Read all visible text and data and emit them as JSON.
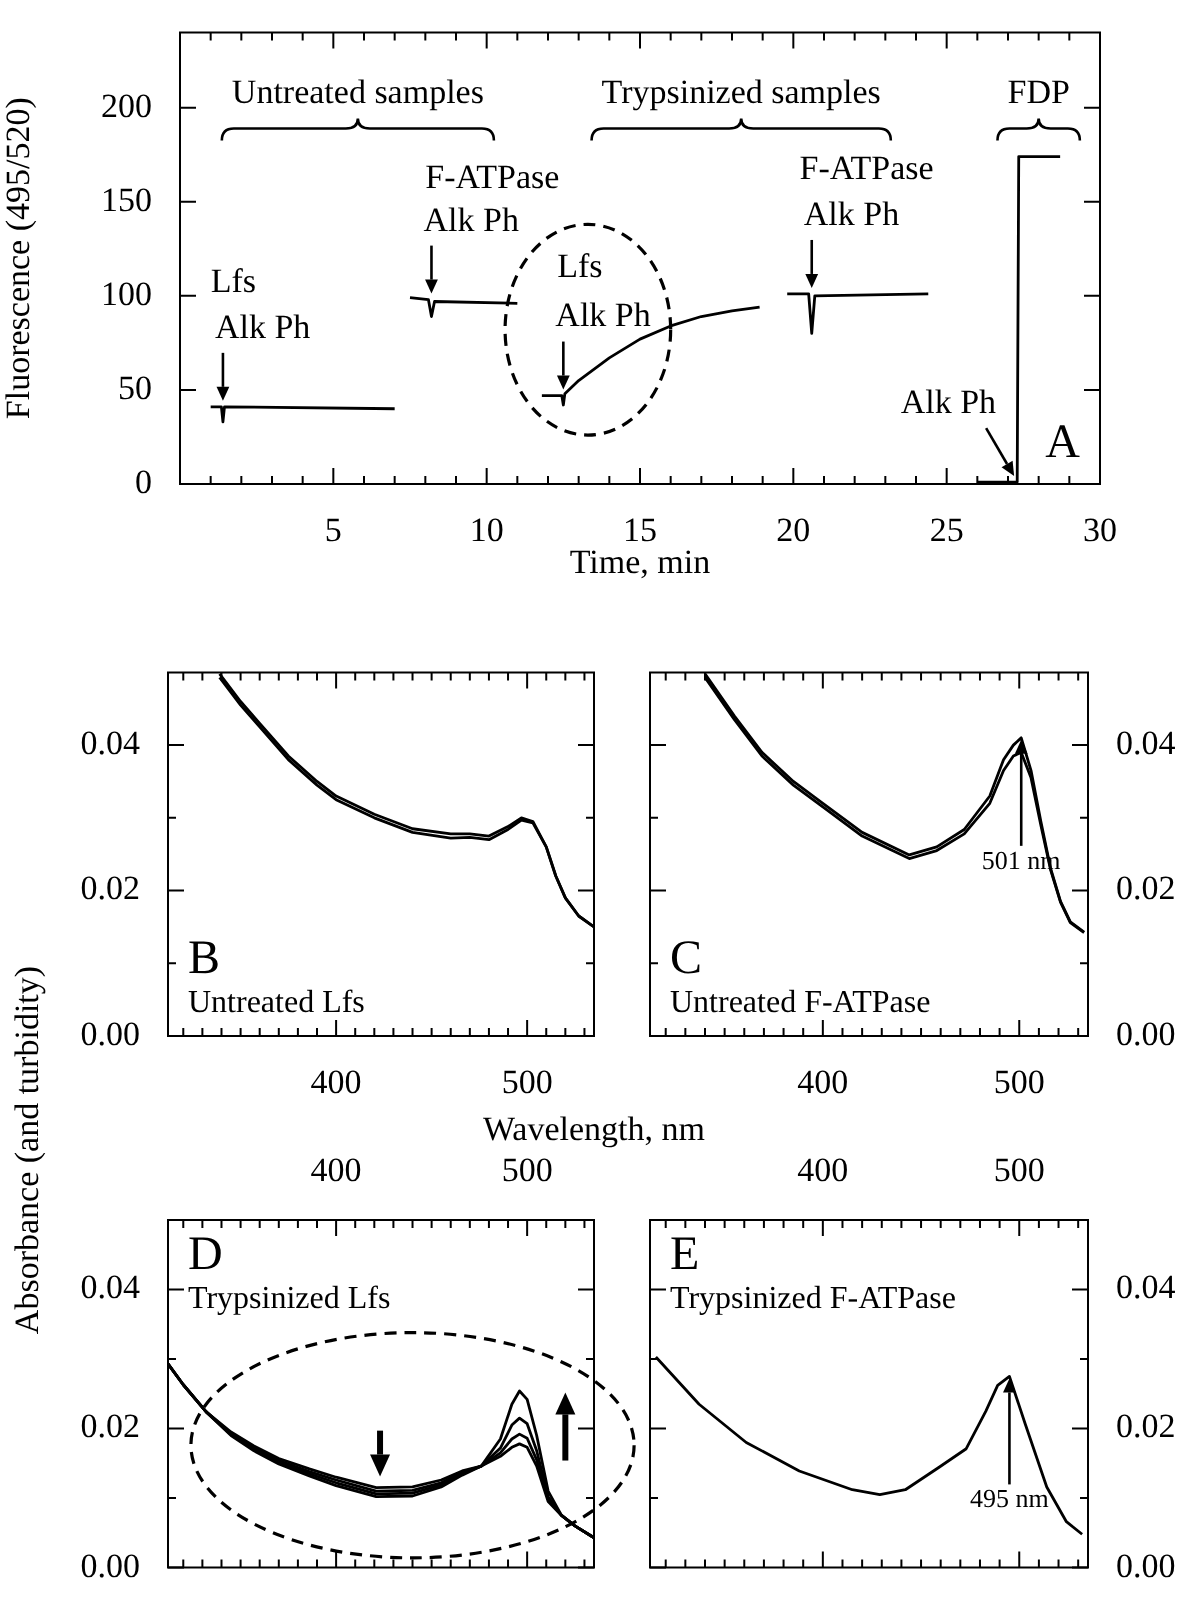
{
  "chart_data": [
    {
      "type": "line",
      "xlabel": "Time, min",
      "ylabel": "Fluorescence (495/520)",
      "xlim": [
        0,
        30
      ],
      "ylim": [
        0,
        240
      ],
      "xticks": [
        {
          "value": 0,
          "label": null
        },
        {
          "value": 1,
          "label": null
        },
        {
          "value": 2,
          "label": null
        },
        {
          "value": 3,
          "label": null
        },
        {
          "value": 4,
          "label": null
        },
        5,
        {
          "value": 6,
          "label": null
        },
        {
          "value": 7,
          "label": null
        },
        {
          "value": 8,
          "label": null
        },
        {
          "value": 9,
          "label": null
        },
        10,
        {
          "value": 11,
          "label": null
        },
        {
          "value": 12,
          "label": null
        },
        {
          "value": 13,
          "label": null
        },
        {
          "value": 14,
          "label": null
        },
        15,
        {
          "value": 16,
          "label": null
        },
        {
          "value": 17,
          "label": null
        },
        {
          "value": 18,
          "label": null
        },
        {
          "value": 19,
          "label": null
        },
        20,
        {
          "value": 21,
          "label": null
        },
        {
          "value": 22,
          "label": null
        },
        {
          "value": 23,
          "label": null
        },
        {
          "value": 24,
          "label": null
        },
        25,
        {
          "value": 26,
          "label": null
        },
        {
          "value": 27,
          "label": null
        },
        {
          "value": 28,
          "label": null
        },
        {
          "value": 29,
          "label": null
        },
        30
      ],
      "yticks": [
        0,
        50,
        100,
        150,
        200
      ],
      "series": [
        {
          "color": "#000000",
          "x": [
            1.0,
            1.35,
            1.4,
            1.45,
            7.0
          ],
          "values": [
            41,
            41,
            33,
            41,
            40
          ]
        },
        {
          "color": "#000000",
          "x": [
            7.5,
            8.1,
            8.2,
            8.3,
            11.0
          ],
          "values": [
            99,
            98,
            89,
            97,
            96
          ]
        },
        {
          "color": "#000000",
          "x": [
            11.8,
            12.45,
            12.5,
            12.55,
            13,
            14,
            15,
            16,
            17,
            18,
            18.9
          ],
          "values": [
            47,
            47,
            42,
            48,
            55,
            67,
            77,
            84,
            89,
            92,
            94
          ]
        },
        {
          "color": "#000000",
          "x": [
            19.8,
            20.5,
            20.6,
            20.7,
            24.4
          ],
          "values": [
            101,
            101,
            80,
            100,
            101
          ]
        },
        {
          "color": "#000000",
          "x": [
            26,
            27.3,
            27.35,
            28.7
          ],
          "values": [
            1,
            1,
            174,
            174
          ]
        }
      ],
      "annotations": [
        "Untreated samples",
        "Trypsinized samples",
        "FDP",
        "Lfs",
        "F-ATPase",
        "Lfs",
        "F-ATPase",
        {
          "text": "Alk Ph",
          "x": 1.4,
          "y": 41
        },
        {
          "text": "Alk Ph",
          "x": 8.2,
          "y": 98
        },
        {
          "text": "Alk Ph",
          "x": 12.5,
          "y": 47
        },
        {
          "text": "Alk Ph",
          "x": 20.6,
          "y": 101
        },
        {
          "text": "Alk Ph",
          "x": 27.2,
          "y": 1
        },
        "A"
      ]
    },
    {
      "type": "line",
      "xlabel": "Wavelength, nm",
      "ylabel": "Absorbance (and turbidity)",
      "xlim": [
        312,
        535
      ],
      "ylim": [
        0,
        0.05
      ],
      "xticks": [
        {
          "value": 320,
          "label": null
        },
        {
          "value": 330,
          "label": null
        },
        {
          "value": 340,
          "label": null
        },
        {
          "value": 350,
          "label": null
        },
        {
          "value": 360,
          "label": null
        },
        {
          "value": 370,
          "label": null
        },
        {
          "value": 380,
          "label": null
        },
        {
          "value": 390,
          "label": null
        },
        400,
        {
          "value": 410,
          "label": null
        },
        {
          "value": 420,
          "label": null
        },
        {
          "value": 430,
          "label": null
        },
        {
          "value": 440,
          "label": null
        },
        {
          "value": 450,
          "label": null
        },
        {
          "value": 460,
          "label": null
        },
        {
          "value": 470,
          "label": null
        },
        {
          "value": 480,
          "label": null
        },
        {
          "value": 490,
          "label": null
        },
        500,
        {
          "value": 510,
          "label": null
        },
        {
          "value": 520,
          "label": null
        },
        {
          "value": 530,
          "label": null
        }
      ],
      "yticks": [
        {
          "value": 0,
          "label": "0.00"
        },
        {
          "value": 0.01,
          "label": null
        },
        0.02,
        {
          "value": 0.03,
          "label": null
        },
        0.04
      ],
      "x": [
        339,
        350,
        360,
        375,
        390,
        400,
        420,
        440,
        460,
        470,
        480,
        490,
        497,
        503,
        510,
        515,
        520,
        527,
        535
      ],
      "series": [
        {
          "color": "#000000",
          "values": [
            0.0498,
            0.046,
            0.043,
            0.0385,
            0.035,
            0.033,
            0.0305,
            0.0285,
            0.0278,
            0.0278,
            0.0275,
            0.0288,
            0.03,
            0.0295,
            0.026,
            0.022,
            0.019,
            0.0165,
            0.015
          ]
        },
        {
          "color": "#000000",
          "values": [
            0.0493,
            0.0455,
            0.0425,
            0.038,
            0.0345,
            0.0325,
            0.03,
            0.028,
            0.0272,
            0.0273,
            0.027,
            0.0284,
            0.0297,
            0.0293,
            0.026,
            0.022,
            0.019,
            0.0165,
            0.015
          ]
        }
      ],
      "annotations": [
        "B",
        "Untreated Lfs"
      ]
    },
    {
      "type": "line",
      "xlim": [
        312,
        535
      ],
      "ylim": [
        0,
        0.05
      ],
      "xticks": [
        {
          "value": 320,
          "label": null
        },
        {
          "value": 330,
          "label": null
        },
        {
          "value": 340,
          "label": null
        },
        {
          "value": 350,
          "label": null
        },
        {
          "value": 360,
          "label": null
        },
        {
          "value": 370,
          "label": null
        },
        {
          "value": 380,
          "label": null
        },
        {
          "value": 390,
          "label": null
        },
        400,
        {
          "value": 410,
          "label": null
        },
        {
          "value": 420,
          "label": null
        },
        {
          "value": 430,
          "label": null
        },
        {
          "value": 440,
          "label": null
        },
        {
          "value": 450,
          "label": null
        },
        {
          "value": 460,
          "label": null
        },
        {
          "value": 470,
          "label": null
        },
        {
          "value": 480,
          "label": null
        },
        {
          "value": 490,
          "label": null
        },
        500,
        {
          "value": 510,
          "label": null
        },
        {
          "value": 520,
          "label": null
        },
        {
          "value": 530,
          "label": null
        }
      ],
      "yticks": [
        {
          "value": 0,
          "label": "0.00"
        },
        {
          "value": 0.01,
          "label": null
        },
        0.02,
        {
          "value": 0.03,
          "label": null
        },
        0.04
      ],
      "x": [
        340,
        355,
        369,
        385,
        400,
        420,
        444,
        458,
        472,
        485,
        492,
        497,
        501,
        506,
        511,
        516,
        521,
        526,
        533
      ],
      "series": [
        {
          "color": "#000000",
          "values": [
            0.0498,
            0.044,
            0.039,
            0.035,
            0.032,
            0.028,
            0.0249,
            0.026,
            0.0284,
            0.033,
            0.038,
            0.04,
            0.041,
            0.0365,
            0.0295,
            0.023,
            0.0185,
            0.0157,
            0.0143
          ]
        },
        {
          "color": "#000000",
          "values": [
            0.0493,
            0.0435,
            0.0385,
            0.0345,
            0.0315,
            0.0275,
            0.0244,
            0.0255,
            0.0278,
            0.032,
            0.0365,
            0.0385,
            0.039,
            0.0355,
            0.029,
            0.0228,
            0.0184,
            0.0156,
            0.0142
          ]
        }
      ],
      "annotations": [
        "C",
        "Untreated F-ATPase",
        {
          "text": "501 nm",
          "x": 501,
          "y": 0.041
        }
      ]
    },
    {
      "type": "line",
      "xlim": [
        312,
        535
      ],
      "ylim": [
        0,
        0.05
      ],
      "xticks": [
        {
          "value": 320,
          "label": null
        },
        {
          "value": 330,
          "label": null
        },
        {
          "value": 340,
          "label": null
        },
        {
          "value": 350,
          "label": null
        },
        {
          "value": 360,
          "label": null
        },
        {
          "value": 370,
          "label": null
        },
        {
          "value": 380,
          "label": null
        },
        {
          "value": 390,
          "label": null
        },
        400,
        {
          "value": 410,
          "label": null
        },
        {
          "value": 420,
          "label": null
        },
        {
          "value": 430,
          "label": null
        },
        {
          "value": 440,
          "label": null
        },
        {
          "value": 450,
          "label": null
        },
        {
          "value": 460,
          "label": null
        },
        {
          "value": 470,
          "label": null
        },
        {
          "value": 480,
          "label": null
        },
        {
          "value": 490,
          "label": null
        },
        500,
        {
          "value": 510,
          "label": null
        },
        {
          "value": 520,
          "label": null
        },
        {
          "value": 530,
          "label": null
        }
      ],
      "yticks": [
        {
          "value": 0,
          "label": "0.00"
        },
        {
          "value": 0.01,
          "label": null
        },
        0.02,
        {
          "value": 0.03,
          "label": null
        },
        0.04
      ],
      "x": [
        312,
        320,
        332,
        345,
        357,
        370,
        386,
        400,
        421,
        440,
        455,
        466,
        476,
        486,
        492,
        496,
        500,
        505,
        511,
        518,
        525,
        535
      ],
      "series": [
        {
          "color": "#000000",
          "values": [
            0.0293,
            0.0263,
            0.0224,
            0.019,
            0.0168,
            0.0149,
            0.0132,
            0.0118,
            0.0102,
            0.0103,
            0.0116,
            0.0133,
            0.0146,
            0.0185,
            0.0235,
            0.0254,
            0.0242,
            0.019,
            0.011,
            0.0075,
            0.006,
            0.0043
          ]
        },
        {
          "color": "#000000",
          "values": [
            0.0293,
            0.0263,
            0.0224,
            0.0191,
            0.017,
            0.0151,
            0.0135,
            0.0122,
            0.0106,
            0.0107,
            0.0119,
            0.0135,
            0.0146,
            0.0172,
            0.0205,
            0.0215,
            0.0207,
            0.0168,
            0.0102,
            0.0075,
            0.006,
            0.0043
          ]
        },
        {
          "color": "#000000",
          "values": [
            0.0293,
            0.0263,
            0.0224,
            0.0193,
            0.0172,
            0.0154,
            0.0138,
            0.0126,
            0.011,
            0.0111,
            0.0122,
            0.0137,
            0.0146,
            0.0165,
            0.0185,
            0.0192,
            0.0186,
            0.0155,
            0.0098,
            0.0075,
            0.006,
            0.0043
          ]
        },
        {
          "color": "#000000",
          "values": [
            0.0293,
            0.0263,
            0.0224,
            0.0195,
            0.0175,
            0.0157,
            0.0142,
            0.013,
            0.0115,
            0.0116,
            0.0126,
            0.0139,
            0.0146,
            0.016,
            0.0173,
            0.0178,
            0.0173,
            0.0146,
            0.0095,
            0.0075,
            0.006,
            0.0043
          ]
        }
      ],
      "annotations": [
        "D",
        "Trypsinized Lfs"
      ]
    },
    {
      "type": "line",
      "xlim": [
        312,
        535
      ],
      "ylim": [
        0,
        0.05
      ],
      "xticks": [
        {
          "value": 320,
          "label": null
        },
        {
          "value": 330,
          "label": null
        },
        {
          "value": 340,
          "label": null
        },
        {
          "value": 350,
          "label": null
        },
        {
          "value": 360,
          "label": null
        },
        {
          "value": 370,
          "label": null
        },
        {
          "value": 380,
          "label": null
        },
        {
          "value": 390,
          "label": null
        },
        400,
        {
          "value": 410,
          "label": null
        },
        {
          "value": 420,
          "label": null
        },
        {
          "value": 430,
          "label": null
        },
        {
          "value": 440,
          "label": null
        },
        {
          "value": 450,
          "label": null
        },
        {
          "value": 460,
          "label": null
        },
        {
          "value": 470,
          "label": null
        },
        {
          "value": 480,
          "label": null
        },
        {
          "value": 490,
          "label": null
        },
        500,
        {
          "value": 510,
          "label": null
        },
        {
          "value": 520,
          "label": null
        },
        {
          "value": 530,
          "label": null
        }
      ],
      "yticks": [
        {
          "value": 0,
          "label": "0.00"
        },
        {
          "value": 0.01,
          "label": null
        },
        0.02,
        {
          "value": 0.03,
          "label": null
        },
        0.04
      ],
      "x": [
        315,
        337,
        361,
        388,
        415,
        429,
        442,
        459,
        473,
        483,
        489,
        495,
        503,
        514,
        524,
        532
      ],
      "series": [
        {
          "color": "#000000",
          "values": [
            0.0303,
            0.0235,
            0.018,
            0.0139,
            0.0112,
            0.0105,
            0.0112,
            0.0144,
            0.0171,
            0.0225,
            0.0262,
            0.0275,
            0.0207,
            0.0116,
            0.0066,
            0.0048
          ]
        }
      ],
      "annotations": [
        "E",
        "Trypsinized F-ATPase",
        {
          "text": "495 nm",
          "x": 495,
          "y": 0.0275
        }
      ]
    }
  ]
}
